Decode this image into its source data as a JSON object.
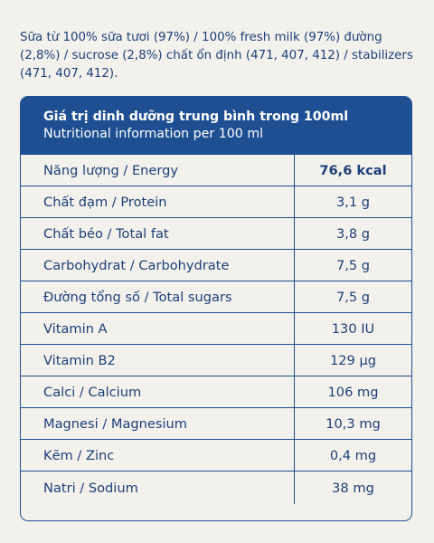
{
  "ingredients": {
    "text": "Sữa từ 100% sữa tươi (97%) / 100% fresh milk (97%) đường (2,8%) / sucrose (2,8%) chất ổn định (471, 407, 412) / stabilizers (471, 407, 412)."
  },
  "table": {
    "title": "Giá trị dinh dưỡng trung bình trong 100ml",
    "subtitle": "Nutritional information per 100 ml",
    "rows": [
      {
        "name": "Năng lượng / Energy",
        "amount": "76,6 kcal"
      },
      {
        "name": "Chất đạm / Protein",
        "amount": "3,1 g"
      },
      {
        "name": "Chất béo / Total fat",
        "amount": "3,8 g"
      },
      {
        "name": "Carbohydrat / Carbohydrate",
        "amount": "7,5 g"
      },
      {
        "name": "Đường tổng số / Total sugars",
        "amount": "7,5 g"
      },
      {
        "name": "Vitamin A",
        "amount": "130 IU"
      },
      {
        "name": "Vitamin B2",
        "amount": "129 µg"
      },
      {
        "name": "Calci / Calcium",
        "amount": "106 mg"
      },
      {
        "name": "Magnesi / Magnesium",
        "amount": "10,3 mg"
      },
      {
        "name": "Kẽm / Zinc",
        "amount": "0,4 mg"
      },
      {
        "name": "Natri / Sodium",
        "amount": "38 mg"
      }
    ]
  },
  "colors": {
    "brand_blue": "#1e4f93",
    "text_blue": "#1d3f7a",
    "background": "#f3f1ec"
  }
}
